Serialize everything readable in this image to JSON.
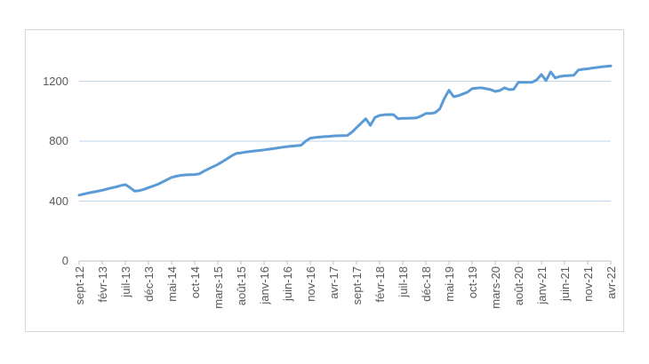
{
  "chart_data": {
    "type": "line",
    "title": "",
    "legend": "none",
    "grid": "horizontal",
    "x_frequency": "monthly",
    "x_start": "sept-12",
    "x_end": "avr-22",
    "x_tick_every_n_points": 5,
    "x_tick_labels": [
      "sept-12",
      "févr-13",
      "juil-13",
      "déc-13",
      "mai-14",
      "oct-14",
      "mars-15",
      "août-15",
      "janv-16",
      "juin-16",
      "nov-16",
      "avr-17",
      "sept-17",
      "févr-18",
      "juil-18",
      "déc-18",
      "mai-19",
      "oct-19",
      "mars-20",
      "août-20",
      "janv-21",
      "juin-21",
      "nov-21",
      "avr-22"
    ],
    "yticks": [
      0,
      400,
      800,
      1200
    ],
    "ylim": [
      0,
      1400
    ],
    "series": [
      {
        "name": "",
        "values": [
          440,
          447,
          454,
          460,
          466,
          472,
          480,
          488,
          495,
          503,
          510,
          490,
          467,
          470,
          478,
          490,
          500,
          512,
          527,
          543,
          558,
          566,
          572,
          575,
          576,
          577,
          582,
          600,
          615,
          630,
          645,
          663,
          682,
          702,
          718,
          722,
          727,
          731,
          735,
          738,
          742,
          746,
          750,
          755,
          760,
          764,
          767,
          770,
          773,
          800,
          820,
          824,
          827,
          830,
          832,
          835,
          836,
          837,
          838,
          860,
          890,
          920,
          950,
          905,
          958,
          972,
          976,
          978,
          977,
          950,
          952,
          953,
          954,
          956,
          968,
          985,
          985,
          990,
          1015,
          1085,
          1140,
          1097,
          1103,
          1115,
          1127,
          1150,
          1154,
          1156,
          1150,
          1144,
          1132,
          1138,
          1156,
          1144,
          1146,
          1192,
          1192,
          1192,
          1193,
          1210,
          1245,
          1204,
          1263,
          1222,
          1232,
          1236,
          1238,
          1240,
          1275,
          1280,
          1283,
          1288,
          1292,
          1296,
          1299,
          1302
        ]
      }
    ],
    "colors": {
      "line": "#5B9BD5",
      "gridline": "#BDD7EE",
      "axis": "#BFBFBF",
      "label_text": "#595959",
      "frame_border": "#D6D6D6"
    }
  }
}
